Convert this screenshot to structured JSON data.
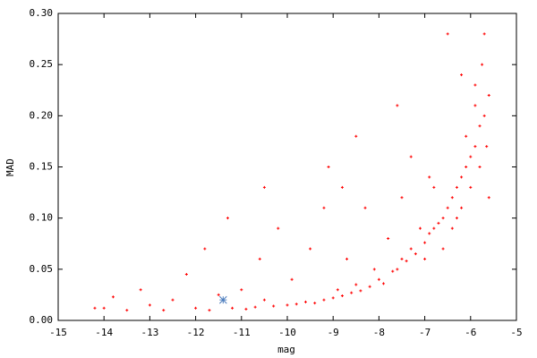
{
  "chart_data": {
    "type": "scatter",
    "x_label": "mag",
    "y_label": "MAD",
    "xlim": [
      -15,
      -5
    ],
    "ylim": [
      0,
      0.3
    ],
    "xticks": [
      -15,
      -14,
      -13,
      -12,
      -11,
      -10,
      -9,
      -8,
      -7,
      -6,
      -5
    ],
    "yticks": [
      {
        "value": 0,
        "label": "0.00"
      },
      {
        "value": 0.05,
        "label": "0.05"
      },
      {
        "value": 0.1,
        "label": "0.10"
      },
      {
        "value": 0.15,
        "label": "0.15"
      },
      {
        "value": 0.2,
        "label": "0.20"
      },
      {
        "value": 0.25,
        "label": "0.25"
      },
      {
        "value": 0.3,
        "label": "0.30"
      }
    ],
    "grid": false,
    "color": "#ff0000",
    "x": [
      -14.2,
      -14.0,
      -13.8,
      -13.5,
      -13.2,
      -13.0,
      -12.7,
      -12.5,
      -12.2,
      -12.0,
      -11.8,
      -11.7,
      -11.5,
      -11.3,
      -11.2,
      -11.0,
      -10.9,
      -10.7,
      -10.6,
      -10.5,
      -10.3,
      -10.2,
      -10.0,
      -9.9,
      -9.8,
      -9.6,
      -9.5,
      -9.4,
      -9.2,
      -9.1,
      -9.0,
      -8.9,
      -8.8,
      -8.7,
      -8.6,
      -8.5,
      -8.4,
      -8.3,
      -8.2,
      -8.1,
      -8.0,
      -7.9,
      -7.8,
      -7.7,
      -7.6,
      -7.5,
      -7.5,
      -7.4,
      -7.3,
      -7.2,
      -7.1,
      -7.0,
      -7.0,
      -6.9,
      -6.8,
      -6.8,
      -6.7,
      -6.6,
      -6.6,
      -6.5,
      -6.5,
      -6.4,
      -6.4,
      -6.3,
      -6.3,
      -6.2,
      -6.2,
      -6.1,
      -6.1,
      -6.0,
      -6.0,
      -5.9,
      -5.9,
      -5.8,
      -5.8,
      -5.75,
      -5.7,
      -5.7,
      -5.65,
      -5.6,
      -5.6,
      -9.2,
      -8.5,
      -8.8,
      -7.6,
      -10.5,
      -7.3,
      -6.9,
      -6.2,
      -5.9
    ],
    "y": [
      0.012,
      0.012,
      0.023,
      0.01,
      0.03,
      0.015,
      0.01,
      0.02,
      0.045,
      0.012,
      0.07,
      0.01,
      0.025,
      0.1,
      0.012,
      0.03,
      0.011,
      0.013,
      0.06,
      0.02,
      0.014,
      0.09,
      0.015,
      0.04,
      0.016,
      0.018,
      0.07,
      0.017,
      0.02,
      0.15,
      0.022,
      0.03,
      0.024,
      0.06,
      0.027,
      0.035,
      0.029,
      0.11,
      0.033,
      0.05,
      0.04,
      0.036,
      0.08,
      0.048,
      0.05,
      0.06,
      0.12,
      0.058,
      0.07,
      0.065,
      0.09,
      0.076,
      0.06,
      0.085,
      0.09,
      0.13,
      0.095,
      0.1,
      0.07,
      0.11,
      0.28,
      0.12,
      0.09,
      0.13,
      0.1,
      0.14,
      0.11,
      0.15,
      0.18,
      0.16,
      0.13,
      0.17,
      0.21,
      0.19,
      0.15,
      0.25,
      0.2,
      0.28,
      0.17,
      0.22,
      0.12,
      0.11,
      0.18,
      0.13,
      0.21,
      0.13,
      0.16,
      0.14,
      0.24,
      0.23
    ],
    "highlight": {
      "x": -11.4,
      "y": 0.02,
      "color": "#4f7fbf"
    }
  }
}
